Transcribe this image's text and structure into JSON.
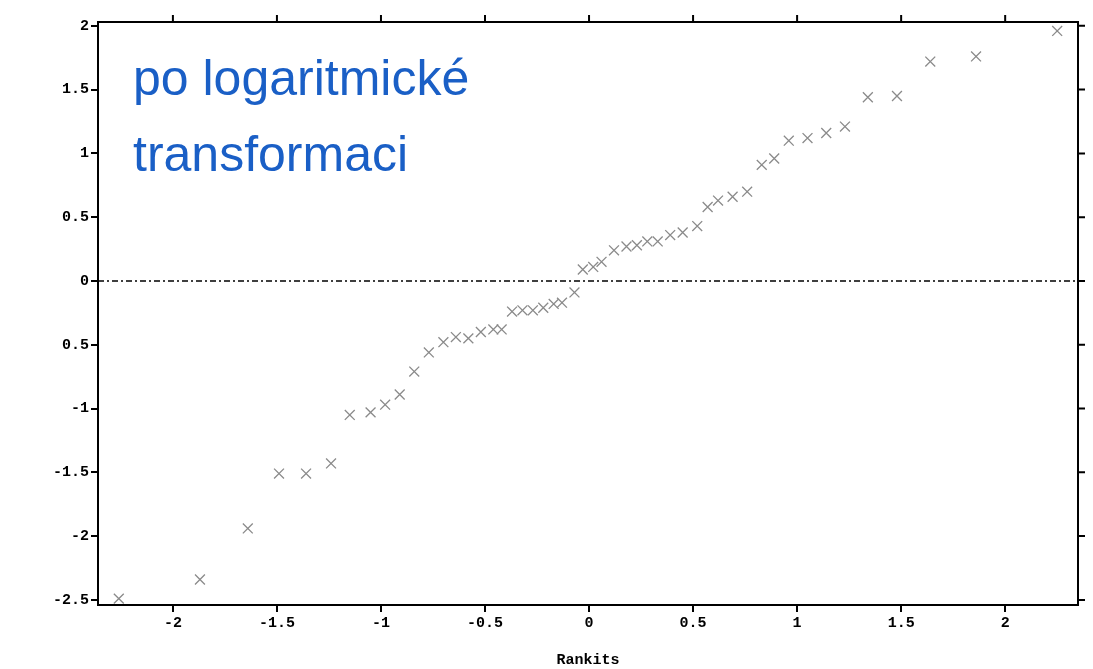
{
  "chart_data": {
    "type": "scatter",
    "xlabel": "Rankits",
    "annotations": [
      "po logaritmické transformaci"
    ],
    "xlim": [
      -2.36,
      2.35
    ],
    "ylim": [
      -2.54,
      2.03
    ],
    "xticks": [
      -2,
      -1.5,
      -1,
      -0.5,
      0,
      0.5,
      1,
      1.5,
      2
    ],
    "yticks": [
      {
        "value": -2.5,
        "label": "-2.5"
      },
      -2,
      {
        "value": -1.5,
        "label": "-1.5"
      },
      -1,
      {
        "value": -0.5,
        "label": "0.5"
      },
      0,
      {
        "value": 0.5,
        "label": "0.5"
      },
      1,
      {
        "value": 1.5,
        "label": "1.5"
      },
      2
    ],
    "grid": false,
    "legend": false,
    "marker": "cross",
    "ref_lines": [
      {
        "axis": "y",
        "value": 0,
        "color": "#000000",
        "line_style": "dashed"
      }
    ],
    "series": [
      {
        "color": "#8a8a8a",
        "x": [
          -2.26,
          -1.87,
          -1.64,
          -1.49,
          -1.36,
          -1.24,
          -1.15,
          -1.05,
          -0.98,
          -0.91,
          -0.84,
          -0.77,
          -0.7,
          -0.64,
          -0.58,
          -0.52,
          -0.46,
          -0.42,
          -0.37,
          -0.32,
          -0.27,
          -0.22,
          -0.17,
          -0.13,
          -0.07,
          -0.03,
          0.02,
          0.06,
          0.12,
          0.18,
          0.23,
          0.28,
          0.33,
          0.39,
          0.45,
          0.52,
          0.57,
          0.62,
          0.69,
          0.76,
          0.83,
          0.89,
          0.96,
          1.05,
          1.14,
          1.23,
          1.34,
          1.48,
          1.64,
          1.86,
          2.25
        ],
        "values": [
          -2.49,
          -2.34,
          -1.94,
          -1.51,
          -1.51,
          -1.43,
          -1.05,
          -1.03,
          -0.97,
          -0.89,
          -0.71,
          -0.56,
          -0.48,
          -0.44,
          -0.45,
          -0.4,
          -0.38,
          -0.38,
          -0.24,
          -0.23,
          -0.23,
          -0.21,
          -0.18,
          -0.17,
          -0.09,
          0.09,
          0.11,
          0.15,
          0.24,
          0.27,
          0.28,
          0.31,
          0.31,
          0.36,
          0.38,
          0.43,
          0.58,
          0.63,
          0.66,
          0.7,
          0.91,
          0.96,
          1.1,
          1.12,
          1.16,
          1.21,
          1.44,
          1.45,
          1.72,
          1.76,
          1.96
        ]
      }
    ]
  }
}
